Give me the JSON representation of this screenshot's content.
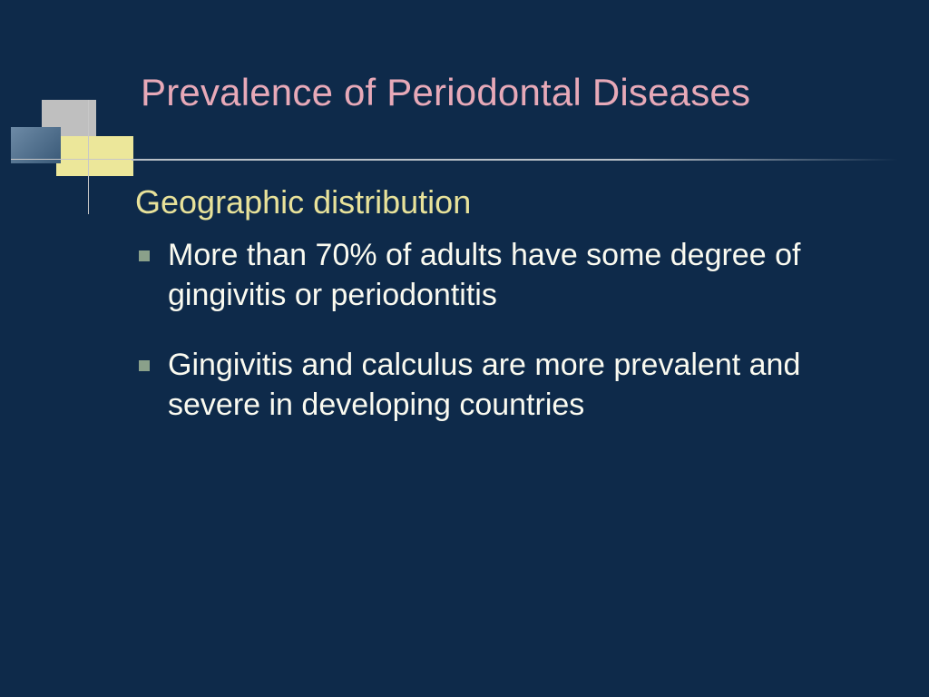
{
  "colors": {
    "background": "#0e2a4a",
    "title": "#e7a9b8",
    "subhead": "#e8e29a",
    "body_text": "#fafaf0",
    "bullet_marker": "#8aa08a",
    "rule": "#b9c0c7",
    "decor_grey": "#bfbfbf",
    "decor_yellow": "#ece79a",
    "decor_blue_a": "#6d8aa6",
    "decor_blue_b": "#3a5a78",
    "decor_line": "#c7c7c7"
  },
  "typography": {
    "title_pt": 42,
    "subhead_pt": 36,
    "body_pt": 34,
    "font_family": "Tahoma"
  },
  "slide": {
    "title": "Prevalence of Periodontal Diseases",
    "subhead": "Geographic distribution",
    "bullets": [
      "More than 70% of adults have some degree of gingivitis or periodontitis",
      "Gingivitis and calculus are more prevalent and severe in developing countries"
    ]
  }
}
